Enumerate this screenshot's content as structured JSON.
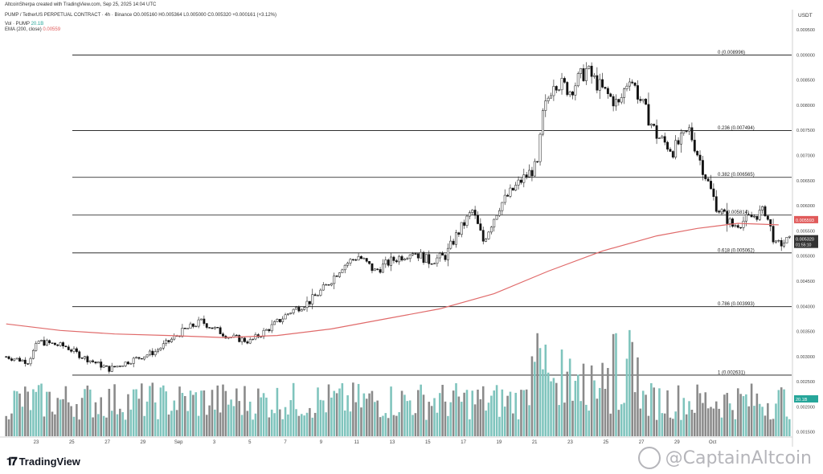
{
  "header": {
    "creator": "AltcoinSherpa created with TradingView.com, Sep 25, 2025 14:04 UTC",
    "symbol_line": "PUMP / TetherUS PERPETUAL CONTRACT · 4h · Binance",
    "ohlc": "O0.005160 H0.005364 L0.005000 C0.005320 +0.000161 (+3.12%)",
    "vol_label": "Vol · PUMP",
    "vol_value": "20.1B",
    "ema_label": "EMA (200, close)",
    "ema_value": "0.00559"
  },
  "axis": {
    "unit": "USDT",
    "price_ticks": [
      "0.009500",
      "0.009000",
      "0.008500",
      "0.008000",
      "0.007500",
      "0.007000",
      "0.006500",
      "0.006000",
      "0.005500",
      "0.005000",
      "0.004500",
      "0.004000",
      "0.003500",
      "0.003000",
      "0.002500",
      "0.002000",
      "0.001500"
    ],
    "date_ticks": [
      "23",
      "25",
      "27",
      "29",
      "Sep",
      "3",
      "5",
      "7",
      "9",
      "11",
      "13",
      "15",
      "17",
      "19",
      "21",
      "23",
      "25",
      "27",
      "29",
      "Oct"
    ],
    "ema_badge": "0.005593",
    "price_badge": "0.005320",
    "price_timer": "01:55:10",
    "vol_badge": "20.1B"
  },
  "chart_data": {
    "type": "candlestick",
    "interval": "4h",
    "ylim": [
      0.0014,
      0.0099
    ],
    "fib_levels": [
      {
        "label": "0 (0.008996)",
        "value": 0.008996
      },
      {
        "label": "0.236 (0.007494)",
        "value": 0.007494
      },
      {
        "label": "0.382 (0.006565)",
        "value": 0.006565
      },
      {
        "label": "0.5 (0.005814)",
        "value": 0.005814
      },
      {
        "label": "0.618 (0.005062)",
        "value": 0.005062
      },
      {
        "label": "0.786 (0.003993)",
        "value": 0.003993
      },
      {
        "label": "1 (0.002631)",
        "value": 0.002631
      }
    ],
    "ema_200": [
      [
        0,
        0.00365
      ],
      [
        20,
        0.00352
      ],
      [
        40,
        0.00345
      ],
      [
        60,
        0.00342
      ],
      [
        80,
        0.00338
      ],
      [
        100,
        0.00342
      ],
      [
        120,
        0.00355
      ],
      [
        140,
        0.00375
      ],
      [
        160,
        0.00395
      ],
      [
        180,
        0.00425
      ],
      [
        200,
        0.0047
      ],
      [
        220,
        0.0051
      ],
      [
        240,
        0.0054
      ],
      [
        255,
        0.00555
      ],
      [
        270,
        0.00565
      ],
      [
        285,
        0.00562
      ]
    ],
    "close_path": [
      [
        0,
        0.003
      ],
      [
        8,
        0.0029
      ],
      [
        12,
        0.0033
      ],
      [
        22,
        0.0032
      ],
      [
        28,
        0.003
      ],
      [
        38,
        0.00275
      ],
      [
        45,
        0.0029
      ],
      [
        55,
        0.0031
      ],
      [
        65,
        0.0035
      ],
      [
        72,
        0.0037
      ],
      [
        82,
        0.0034
      ],
      [
        90,
        0.0033
      ],
      [
        98,
        0.0036
      ],
      [
        105,
        0.0039
      ],
      [
        112,
        0.0041
      ],
      [
        118,
        0.0044
      ],
      [
        124,
        0.0048
      ],
      [
        130,
        0.005
      ],
      [
        136,
        0.0047
      ],
      [
        142,
        0.0049
      ],
      [
        150,
        0.0051
      ],
      [
        156,
        0.0049
      ],
      [
        162,
        0.005
      ],
      [
        166,
        0.0054
      ],
      [
        172,
        0.0059
      ],
      [
        176,
        0.0053
      ],
      [
        182,
        0.006
      ],
      [
        190,
        0.0065
      ],
      [
        196,
        0.0068
      ],
      [
        198,
        0.0078
      ],
      [
        202,
        0.0085
      ],
      [
        208,
        0.0083
      ],
      [
        214,
        0.0087
      ],
      [
        220,
        0.0083
      ],
      [
        226,
        0.008
      ],
      [
        230,
        0.0086
      ],
      [
        234,
        0.0081
      ],
      [
        240,
        0.0074
      ],
      [
        246,
        0.0071
      ],
      [
        252,
        0.0075
      ],
      [
        256,
        0.0069
      ],
      [
        262,
        0.006
      ],
      [
        268,
        0.0056
      ],
      [
        276,
        0.0058
      ],
      [
        280,
        0.0059
      ],
      [
        284,
        0.0052
      ],
      [
        288,
        0.0053
      ]
    ]
  }
}
